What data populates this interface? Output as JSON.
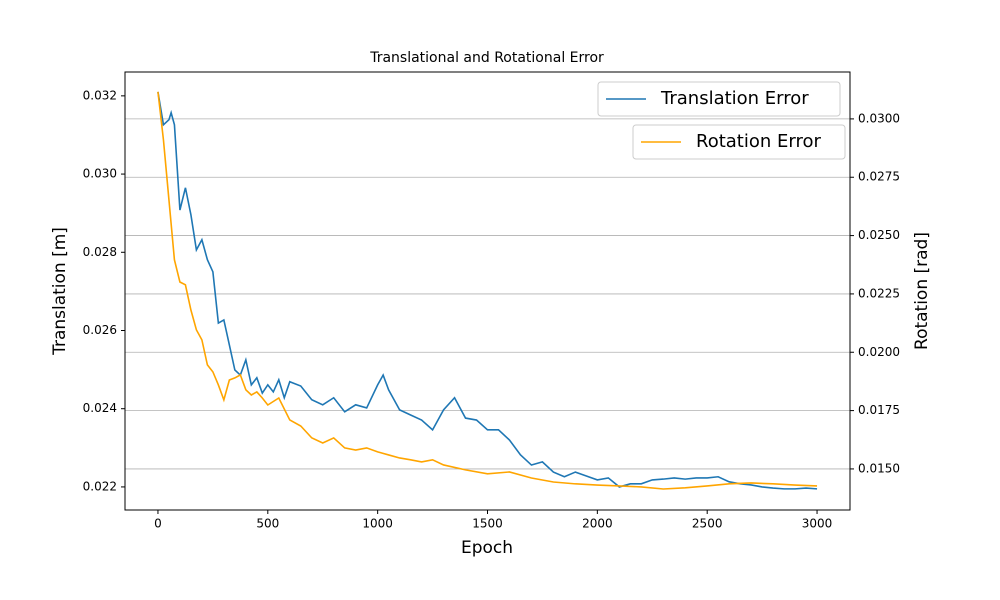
{
  "chart_data": {
    "type": "line",
    "title": "Translational  and Rotational Error",
    "xlabel": "Epoch",
    "ylabel": "Translation [m]",
    "y2label": "Rotation [rad]",
    "xlim": [
      -150,
      3150
    ],
    "xticks": [
      0,
      500,
      1000,
      1500,
      2000,
      2500,
      3000
    ],
    "ylim": [
      0.02141,
      0.03261
    ],
    "yticks": [
      0.022,
      0.024,
      0.026,
      0.028,
      {
        "value": 0.03,
        "label": "0.030"
      },
      0.032
    ],
    "y2lim": [
      0.01324,
      0.03201
    ],
    "y2ticks": [
      {
        "value": 0.015,
        "label": "0.0150"
      },
      0.0175,
      {
        "value": 0.02,
        "label": "0.0200"
      },
      0.0225,
      {
        "value": 0.025,
        "label": "0.0250"
      },
      0.0275,
      {
        "value": 0.03,
        "label": "0.0300"
      }
    ],
    "grid": "y2",
    "legend": "upper right",
    "series": [
      {
        "name": "Translation Error",
        "color": "#1f77b4",
        "axis": "y",
        "x": [
          0,
          25,
          50,
          60,
          75,
          100,
          125,
          150,
          175,
          200,
          225,
          250,
          275,
          300,
          325,
          350,
          375,
          400,
          425,
          450,
          475,
          500,
          525,
          550,
          575,
          600,
          650,
          700,
          750,
          800,
          850,
          900,
          950,
          1000,
          1025,
          1050,
          1100,
          1150,
          1200,
          1250,
          1300,
          1350,
          1400,
          1450,
          1500,
          1550,
          1600,
          1650,
          1700,
          1750,
          1800,
          1850,
          1900,
          1950,
          2000,
          2050,
          2100,
          2150,
          2200,
          2250,
          2300,
          2350,
          2400,
          2450,
          2500,
          2550,
          2600,
          2650,
          2700,
          2750,
          2800,
          2850,
          2900,
          2950,
          3000
        ],
        "values": [
          0.0321,
          0.03126,
          0.03139,
          0.03157,
          0.03126,
          0.02908,
          0.02965,
          0.02896,
          0.02806,
          0.02832,
          0.02781,
          0.0275,
          0.02619,
          0.02627,
          0.02563,
          0.02499,
          0.02486,
          0.02525,
          0.02461,
          0.02479,
          0.0244,
          0.02461,
          0.02443,
          0.02474,
          0.02428,
          0.02469,
          0.02458,
          0.02423,
          0.0241,
          0.02428,
          0.02392,
          0.0241,
          0.02402,
          0.02461,
          0.02486,
          0.02448,
          0.02397,
          0.02384,
          0.02371,
          0.02346,
          0.02397,
          0.02428,
          0.02376,
          0.02371,
          0.02346,
          0.02346,
          0.0232,
          0.02282,
          0.02256,
          0.02264,
          0.02238,
          0.02226,
          0.02238,
          0.02228,
          0.02218,
          0.02223,
          0.022,
          0.02208,
          0.02208,
          0.02218,
          0.0222,
          0.02223,
          0.0222,
          0.02223,
          0.02223,
          0.02226,
          0.02213,
          0.02208,
          0.02205,
          0.022,
          0.02197,
          0.02195,
          0.02195,
          0.02197,
          0.02195
        ]
      },
      {
        "name": "Rotation Error",
        "color": "#ffa500",
        "axis": "y2",
        "x": [
          0,
          25,
          50,
          75,
          100,
          125,
          150,
          175,
          200,
          225,
          250,
          275,
          300,
          325,
          350,
          375,
          400,
          425,
          450,
          475,
          500,
          550,
          600,
          650,
          700,
          750,
          800,
          850,
          900,
          950,
          1000,
          1050,
          1100,
          1150,
          1200,
          1250,
          1300,
          1400,
          1500,
          1600,
          1700,
          1800,
          1900,
          2000,
          2100,
          2200,
          2300,
          2400,
          2500,
          2600,
          2700,
          2800,
          2900,
          3000
        ],
        "values": [
          0.03116,
          0.0291,
          0.02653,
          0.02396,
          0.02301,
          0.02289,
          0.02181,
          0.02096,
          0.02053,
          0.01946,
          0.01916,
          0.0186,
          0.01796,
          0.01881,
          0.0189,
          0.01903,
          0.01839,
          0.01817,
          0.0183,
          0.01804,
          0.01774,
          0.01804,
          0.0171,
          0.01684,
          0.01633,
          0.01611,
          0.01633,
          0.0159,
          0.01581,
          0.0159,
          0.01573,
          0.0156,
          0.01547,
          0.01539,
          0.0153,
          0.01539,
          0.01517,
          0.01496,
          0.01479,
          0.01487,
          0.01461,
          0.01444,
          0.01436,
          0.01431,
          0.01427,
          0.01423,
          0.01414,
          0.01419,
          0.01427,
          0.01436,
          0.0144,
          0.01436,
          0.01431,
          0.01427
        ]
      }
    ]
  }
}
